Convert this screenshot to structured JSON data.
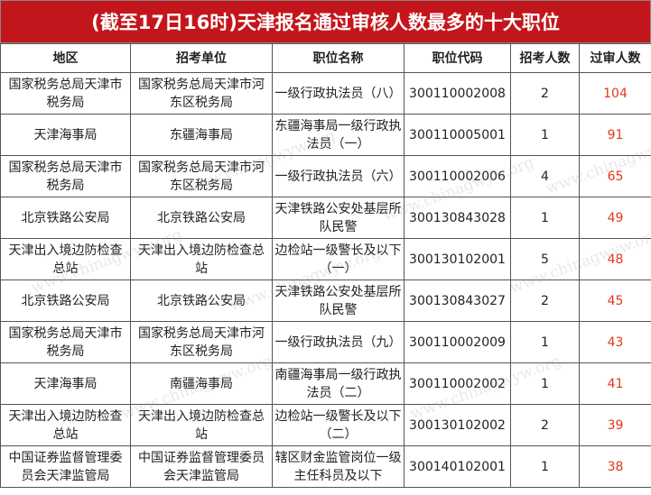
{
  "title": "(截至17日16时)天津报名通过审核人数最多的十大职位",
  "table": {
    "headers": [
      "地区",
      "招考单位",
      "职位名称",
      "职位代码",
      "招考人数",
      "过审人数"
    ],
    "rows": [
      [
        "国家税务总局天津市税务局",
        "国家税务总局天津市河东区税务局",
        "一级行政执法员（八）",
        "300110002008",
        2,
        104
      ],
      [
        "天津海事局",
        "东疆海事局",
        "东疆海事局一级行政执法员（一）",
        "300110005001",
        1,
        91
      ],
      [
        "国家税务总局天津市税务局",
        "国家税务总局天津市河东区税务局",
        "一级行政执法员（六）",
        "300110002006",
        4,
        65
      ],
      [
        "北京铁路公安局",
        "北京铁路公安局",
        "天津铁路公安处基层所队民警",
        "300130843028",
        1,
        49
      ],
      [
        "天津出入境边防检查总站",
        "天津出入境边防检查总站",
        "边检站一级警长及以下（一）",
        "300130102001",
        5,
        48
      ],
      [
        "北京铁路公安局",
        "北京铁路公安局",
        "天津铁路公安处基层所队民警",
        "300130843027",
        2,
        45
      ],
      [
        "国家税务总局天津市税务局",
        "国家税务总局天津市河东区税务局",
        "一级行政执法员（九）",
        "300110002009",
        1,
        43
      ],
      [
        "天津海事局",
        "南疆海事局",
        "南疆海事局一级行政执法员（二）",
        "300110002002",
        1,
        41
      ],
      [
        "天津出入境边防检查总站",
        "天津出入境边防检查总站",
        "边检站一级警长及以下（二）",
        "300130102002",
        2,
        39
      ],
      [
        "中国证券监督管理委员会天津监管局",
        "中国证券监督管理委员会天津监管局",
        "辖区财金监管岗位一级主任科员及以下",
        "300140102001",
        1,
        38
      ]
    ]
  },
  "watermark": "www.chinagwyw.org"
}
